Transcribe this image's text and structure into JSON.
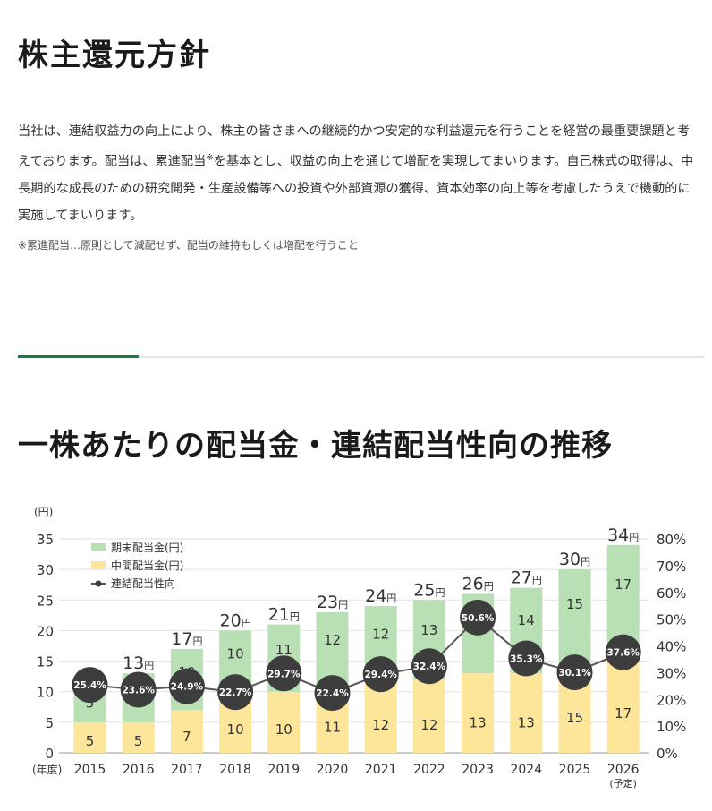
{
  "policy": {
    "title": "株主還元方針",
    "body_a": "当社は、連結収益力の向上により、株主の皆さまへの継続的かつ安定的な利益還元を行うことを経営の最重要課題と考えております。配当は、累進配当",
    "body_mark": "※",
    "body_b": "を基本とし、収益の向上を通じて増配を実現してまいります。自己株式の取得は、中長期的な成長のための研究開発・生産設備等への投資や外部資源の獲得、資本効率の向上等を考慮したうえで機動的に実施してまいります。",
    "note": "※累進配当…原則として減配せず、配当の維持もしくは増配を行うこと"
  },
  "section": {
    "title": "一株あたりの配当金・連結配当性向の推移"
  },
  "colors": {
    "interim": "#fde59a",
    "year_end": "#b9dfb5",
    "ratio_circle": "#3d3d3d",
    "ratio_line": "#555555",
    "accent": "#1d7a45"
  },
  "chart_data": {
    "type": "bar",
    "stacked": true,
    "categories": [
      "2015",
      "2016",
      "2017",
      "2018",
      "2019",
      "2020",
      "2021",
      "2022",
      "2023",
      "2024",
      "2025",
      "2026"
    ],
    "category_notes": [
      "",
      "",
      "",
      "",
      "",
      "",
      "",
      "",
      "",
      "",
      "",
      "(予定)"
    ],
    "series": [
      {
        "name": "中間配当金(円)",
        "values": [
          5,
          5,
          7,
          10,
          10,
          11,
          12,
          12,
          13,
          13,
          15,
          17
        ]
      },
      {
        "name": "期末配当金(円)",
        "values": [
          5,
          8,
          10,
          10,
          11,
          12,
          12,
          13,
          13,
          14,
          15,
          17
        ]
      }
    ],
    "totals": [
      10,
      13,
      17,
      20,
      21,
      23,
      24,
      25,
      26,
      27,
      30,
      34
    ],
    "total_unit": "円",
    "line_series": {
      "name": "連結配当性向",
      "values": [
        25.4,
        23.6,
        24.9,
        22.7,
        29.7,
        22.4,
        29.4,
        32.4,
        50.6,
        35.3,
        30.1,
        37.6
      ],
      "labels": [
        "25.4%",
        "23.6%",
        "24.9%",
        "22.7%",
        "29.7%",
        "22.4%",
        "29.4%",
        "32.4%",
        "50.6%",
        "35.3%",
        "30.1%",
        "37.6%"
      ]
    },
    "legend": [
      "期末配当金(円)",
      "中間配当金(円)",
      "連結配当性向"
    ],
    "legend_position": "top-left",
    "ylabel": "(円)",
    "xlabel": "(年度)",
    "ylim": [
      0,
      35
    ],
    "yticks": [
      "0",
      "5",
      "10",
      "15",
      "20",
      "25",
      "30",
      "35"
    ],
    "y2lim": [
      0,
      80
    ],
    "y2ticks": [
      "0%",
      "10%",
      "20%",
      "30%",
      "40%",
      "50%",
      "60%",
      "70%",
      "80%"
    ]
  }
}
